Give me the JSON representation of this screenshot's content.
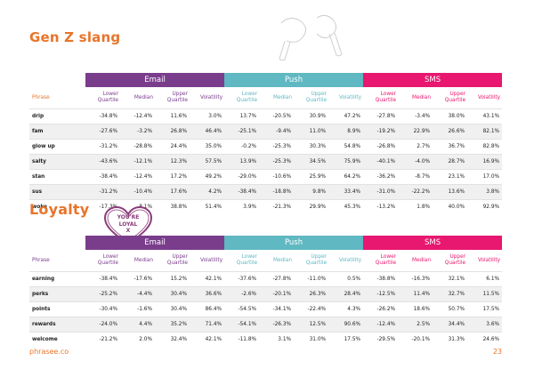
{
  "section1": {
    "title": "Gen Z slang",
    "groups": [
      "Email",
      "Push",
      "SMS"
    ],
    "phrase_header": "Phrase",
    "metric_headers": [
      "Lower Quartile",
      "Median",
      "Upper Quartile",
      "Volatility"
    ],
    "rows": [
      {
        "phrase": "drip",
        "values": [
          "-34.8%",
          "-12.4%",
          "11.6%",
          "3.0%",
          "13.7%",
          "-20.5%",
          "30.9%",
          "47.2%",
          "-27.8%",
          "-3.4%",
          "38.0%",
          "43.1%"
        ]
      },
      {
        "phrase": "fam",
        "values": [
          "-27.6%",
          "-3.2%",
          "26.8%",
          "46.4%",
          "-25.1%",
          "-9.4%",
          "11.0%",
          "8.9%",
          "-19.2%",
          "22.9%",
          "26.6%",
          "82.1%"
        ]
      },
      {
        "phrase": "glow up",
        "values": [
          "-31.2%",
          "-28.8%",
          "24.4%",
          "35.0%",
          "-0.2%",
          "-25.3%",
          "30.3%",
          "54.8%",
          "-26.8%",
          "2.7%",
          "36.7%",
          "82.8%"
        ]
      },
      {
        "phrase": "salty",
        "values": [
          "-43.6%",
          "-12.1%",
          "12.3%",
          "57.5%",
          "13.9%",
          "-25.3%",
          "34.5%",
          "75.9%",
          "-40.1%",
          "-4.0%",
          "28.7%",
          "16.9%"
        ]
      },
      {
        "phrase": "stan",
        "values": [
          "-38.4%",
          "-12.4%",
          "17.2%",
          "49.2%",
          "-29.0%",
          "-10.6%",
          "25.9%",
          "64.2%",
          "-36.2%",
          "-8.7%",
          "23.1%",
          "17.0%"
        ]
      },
      {
        "phrase": "sus",
        "values": [
          "-31.2%",
          "-10.4%",
          "17.6%",
          "4.2%",
          "-38.4%",
          "-18.8%",
          "9.8%",
          "33.4%",
          "-31.0%",
          "-22.2%",
          "13.6%",
          "3.8%"
        ]
      },
      {
        "phrase": "woke",
        "values": [
          "-17.3%",
          "8.1%",
          "38.8%",
          "51.4%",
          "3.9%",
          "-21.3%",
          "29.9%",
          "45.3%",
          "-13.2%",
          "1.8%",
          "40.0%",
          "92.9%"
        ]
      }
    ]
  },
  "section2": {
    "title": "Loyalty",
    "stamp_text": "YOU'RE LOYAL X",
    "groups": [
      "Email",
      "Push",
      "SMS"
    ],
    "phrase_header": "Phrase",
    "metric_headers": [
      "Lower Quartile",
      "Median",
      "Upper Quartile",
      "Volatility"
    ],
    "rows": [
      {
        "phrase": "earning",
        "values": [
          "-38.4%",
          "-17.6%",
          "15.2%",
          "42.1%",
          "-37.6%",
          "-27.8%",
          "-11.0%",
          "0.5%",
          "-38.8%",
          "-16.3%",
          "32.1%",
          "6.1%"
        ]
      },
      {
        "phrase": "perks",
        "values": [
          "-25.2%",
          "-4.4%",
          "30.4%",
          "36.6%",
          "-2.6%",
          "-20.1%",
          "26.3%",
          "28.4%",
          "-12.5%",
          "11.4%",
          "32.7%",
          "11.5%"
        ]
      },
      {
        "phrase": "points",
        "values": [
          "-30.4%",
          "-1.6%",
          "30.4%",
          "86.4%",
          "-54.5%",
          "-34.1%",
          "-22.4%",
          "4.3%",
          "-26.2%",
          "18.6%",
          "50.7%",
          "17.5%"
        ]
      },
      {
        "phrase": "rewards",
        "values": [
          "-24.0%",
          "4.4%",
          "35.2%",
          "71.4%",
          "-54.1%",
          "-26.3%",
          "12.5%",
          "90.6%",
          "-12.4%",
          "2.5%",
          "34.4%",
          "3.6%"
        ]
      },
      {
        "phrase": "welcome",
        "values": [
          "-21.2%",
          "2.0%",
          "32.4%",
          "42.1%",
          "-11.8%",
          "3.1%",
          "31.0%",
          "17.5%",
          "-29.5%",
          "-20.1%",
          "31.3%",
          "24.6%"
        ]
      }
    ]
  },
  "footer": {
    "brand": "phrasee.co",
    "page": "23"
  },
  "colors": {
    "accent": "#e8742a",
    "email": "#7a3d8c",
    "push": "#5fb8c2",
    "sms": "#e8176f"
  }
}
